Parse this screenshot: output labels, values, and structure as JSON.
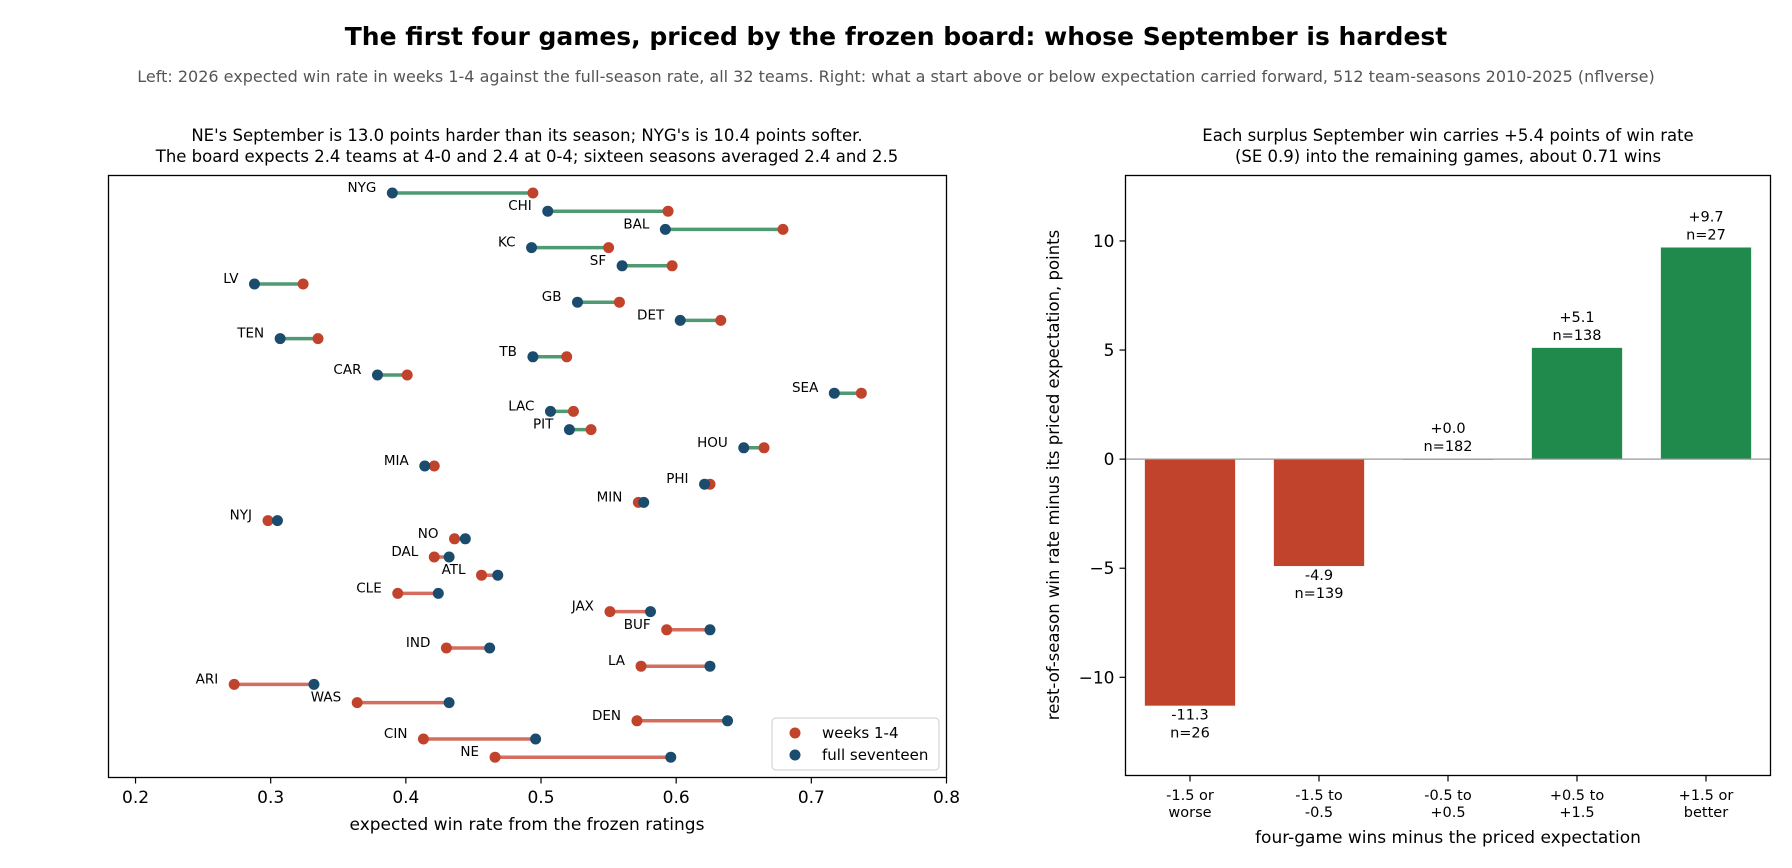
{
  "title": "The first four games, priced by the frozen board: whose September is hardest",
  "subtitle": "Left: 2026 expected win rate in weeks 1-4 against the full-season rate, all 32 teams. Right: what a start above or below expectation carried forward, 512 team-seasons 2010-2025 (nflverse)",
  "colors": {
    "weeks": "#c1432b",
    "full": "#1b4c6e",
    "harder_line": "#4f9a73",
    "softer_line": "#d36e5e",
    "bar_neg": "#c1432b",
    "bar_pos": "#1f8a4c",
    "zero_line": "#999999"
  },
  "chart_data": [
    {
      "type": "dumbbell",
      "title_lines": [
        "NE's September is 13.0 points harder than its season; NYG's is 10.4 points softer.",
        "The board expects 2.4 teams at 4-0 and 2.4 at 0-4; sixteen seasons averaged 2.4 and 2.5"
      ],
      "xlabel": "expected win rate from the frozen ratings",
      "xlim": [
        0.18,
        0.8
      ],
      "xticks": [
        "0.2",
        "0.3",
        "0.4",
        "0.5",
        "0.6",
        "0.7",
        "0.8"
      ],
      "legend": {
        "placement": "lower-right",
        "weeks_label": "weeks 1-4",
        "full_label": "full seventeen"
      },
      "teams": [
        {
          "team": "NYG",
          "weeks": 0.494,
          "full": 0.39
        },
        {
          "team": "CHI",
          "weeks": 0.594,
          "full": 0.505
        },
        {
          "team": "BAL",
          "weeks": 0.679,
          "full": 0.592
        },
        {
          "team": "KC",
          "weeks": 0.55,
          "full": 0.493
        },
        {
          "team": "SF",
          "weeks": 0.597,
          "full": 0.56
        },
        {
          "team": "LV",
          "weeks": 0.324,
          "full": 0.288
        },
        {
          "team": "GB",
          "weeks": 0.558,
          "full": 0.527
        },
        {
          "team": "DET",
          "weeks": 0.633,
          "full": 0.603
        },
        {
          "team": "TEN",
          "weeks": 0.335,
          "full": 0.307
        },
        {
          "team": "TB",
          "weeks": 0.519,
          "full": 0.494
        },
        {
          "team": "CAR",
          "weeks": 0.401,
          "full": 0.379
        },
        {
          "team": "SEA",
          "weeks": 0.737,
          "full": 0.717
        },
        {
          "team": "LAC",
          "weeks": 0.524,
          "full": 0.507
        },
        {
          "team": "PIT",
          "weeks": 0.537,
          "full": 0.521
        },
        {
          "team": "HOU",
          "weeks": 0.665,
          "full": 0.65
        },
        {
          "team": "MIA",
          "weeks": 0.421,
          "full": 0.414
        },
        {
          "team": "PHI",
          "weeks": 0.625,
          "full": 0.621
        },
        {
          "team": "MIN",
          "weeks": 0.572,
          "full": 0.576
        },
        {
          "team": "NYJ",
          "weeks": 0.298,
          "full": 0.305
        },
        {
          "team": "NO",
          "weeks": 0.436,
          "full": 0.444
        },
        {
          "team": "DAL",
          "weeks": 0.421,
          "full": 0.432
        },
        {
          "team": "ATL",
          "weeks": 0.456,
          "full": 0.468
        },
        {
          "team": "CLE",
          "weeks": 0.394,
          "full": 0.424
        },
        {
          "team": "JAX",
          "weeks": 0.551,
          "full": 0.581
        },
        {
          "team": "BUF",
          "weeks": 0.593,
          "full": 0.625
        },
        {
          "team": "IND",
          "weeks": 0.43,
          "full": 0.462
        },
        {
          "team": "LA",
          "weeks": 0.574,
          "full": 0.625
        },
        {
          "team": "ARI",
          "weeks": 0.273,
          "full": 0.332
        },
        {
          "team": "WAS",
          "weeks": 0.364,
          "full": 0.432
        },
        {
          "team": "DEN",
          "weeks": 0.571,
          "full": 0.638
        },
        {
          "team": "CIN",
          "weeks": 0.413,
          "full": 0.496
        },
        {
          "team": "NE",
          "weeks": 0.466,
          "full": 0.596
        }
      ]
    },
    {
      "type": "bar",
      "title_lines": [
        "Each surplus September win carries +5.4 points of win rate",
        "(SE 0.9) into the remaining games, about 0.71 wins"
      ],
      "xlabel": "four-game wins minus the priced expectation",
      "ylabel": "rest-of-season win rate minus its priced expectation, points",
      "ylim": [
        -14.5,
        13
      ],
      "yticks": [
        -10,
        -5,
        0,
        5,
        10
      ],
      "ytick_labels": [
        "−10",
        "−5",
        "0",
        "5",
        "10"
      ],
      "categories": [
        [
          "-1.5 or",
          "worse"
        ],
        [
          "-1.5 to",
          "-0.5"
        ],
        [
          "-0.5 to",
          "+0.5"
        ],
        [
          "+0.5 to",
          "+1.5"
        ],
        [
          "+1.5 or",
          "better"
        ]
      ],
      "values": [
        -11.3,
        -4.9,
        0.0,
        5.1,
        9.7
      ],
      "value_labels": [
        "-11.3",
        "-4.9",
        "+0.0",
        "+5.1",
        "+9.7"
      ],
      "n_labels": [
        "n=26",
        "n=139",
        "n=182",
        "n=138",
        "n=27"
      ]
    }
  ]
}
